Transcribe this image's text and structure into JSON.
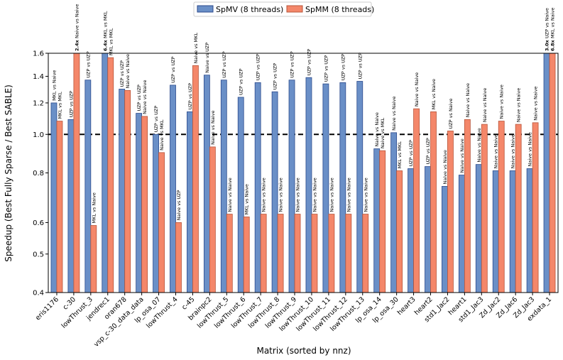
{
  "chart_data": {
    "type": "bar",
    "title": "",
    "xlabel": "Matrix (sorted by nnz)",
    "ylabel": "Speedup (Best Fully Sparse / Best SABLE)",
    "ylim": [
      0.4,
      1.6
    ],
    "yscale": "log",
    "yticks": [
      "0.4",
      "0.5",
      "0.6",
      "0.8",
      "1.0",
      "1.2",
      "1.4",
      "1.6"
    ],
    "reference_line": 1.0,
    "legend_position": "top-center",
    "categories": [
      "eris1176",
      "c-30",
      "lowThrust_3",
      "jendrec1",
      "oran678",
      "vsp_c-30_data_data",
      "lp_osa_07",
      "lowThrust_4",
      "c-45",
      "brainpc2",
      "lowThrust_5",
      "lowThrust_6",
      "lowThrust_7",
      "lowThrust_8",
      "lowThrust_9",
      "lowThrust_10",
      "lowThrust_11",
      "lowThrust_12",
      "lowThrust_13",
      "lp_osa_14",
      "lp_osa_30",
      "heart3",
      "heart2",
      "std1_Jac2",
      "heart1",
      "std1_Jac3",
      "Zd_Jac2",
      "Zd_Jac6",
      "Zd_Jac3",
      "exdata_1"
    ],
    "series": [
      {
        "name": "SpMV (8 threads)",
        "color": "#6a8fc7",
        "edge": "#2b4a8c",
        "values": [
          1.2,
          1.09,
          1.37,
          1.61,
          1.3,
          1.13,
          1.0,
          1.33,
          1.14,
          1.41,
          1.37,
          1.24,
          1.35,
          1.28,
          1.37,
          1.39,
          1.34,
          1.35,
          1.36,
          0.92,
          1.01,
          0.82,
          0.83,
          0.74,
          0.79,
          0.84,
          0.81,
          0.81,
          0.82,
          1.61
        ],
        "labels": [
          "MKL vs Naive",
          "UZP vs UZP",
          "UZP vs UZP",
          "MKL vs MKL",
          "UZP vs UZP",
          "UZP vs UZP",
          "UZP vs UZP",
          "UZP vs UZP",
          "UZP vs UZP",
          "Naive vs UZP",
          "UZP vs UZP",
          "UZP vs UZP",
          "UZP vs UZP",
          "UZP vs UZP",
          "UZP vs UZP",
          "UZP vs UZP",
          "UZP vs UZP",
          "UZP vs UZP",
          "UZP vs UZP",
          "Naive vs Naive",
          "Naive vs Naive",
          "UZP vs UZP",
          "UZP vs UZP",
          "Naive vs Naive",
          "Naive vs Naive",
          "Naive vs Naive",
          "Naive vs Naive",
          "Naive vs Naive",
          "Naive vs Naive",
          "UZP vs Naive"
        ],
        "bold_prefix": [
          "",
          "",
          "",
          "6.4x",
          "",
          "",
          "",
          "",
          "",
          "",
          "",
          "",
          "",
          "",
          "",
          "",
          "",
          "",
          "",
          "",
          "",
          "",
          "",
          "",
          "",
          "",
          "",
          "",
          "",
          "3.0x"
        ]
      },
      {
        "name": "SpMM (8 threads)",
        "color": "#f4876a",
        "edge": "#b8553a",
        "values": [
          1.08,
          1.61,
          0.59,
          1.56,
          1.29,
          1.11,
          0.9,
          0.6,
          1.49,
          0.93,
          0.63,
          0.62,
          0.63,
          0.63,
          0.63,
          0.63,
          0.63,
          0.63,
          0.63,
          0.91,
          0.81,
          1.16,
          1.14,
          1.02,
          1.09,
          1.06,
          1.08,
          1.06,
          1.07,
          1.61
        ],
        "labels": [
          "MKL vs MKL",
          "Naive vs Naive",
          "MKL vs Naive",
          "MKL vs MKL",
          "Naive vs Naive",
          "Naive vs Naive",
          "Naive vs MKL",
          "Naive vs UZP",
          "Naive vs MKL",
          "Naive vs Naive",
          "Naive vs Naive",
          "MKL vs Naive",
          "Naive vs Naive",
          "Naive vs Naive",
          "Naive vs Naive",
          "Naive vs Naive",
          "Naive vs Naive",
          "Naive vs Naive",
          "Naive vs Naive",
          "Naive vs MKL",
          "MKL vs MKL",
          "Naive vs Naive",
          "MKL vs Naive",
          "UZP vs Naive",
          "Naive vs Naive",
          "Naive vs Naive",
          "Naive vs Naive",
          "Naive vs Naive",
          "Naive vs Naive",
          "MKL vs Naive"
        ],
        "bold_prefix": [
          "",
          "2.4x",
          "",
          "",
          "",
          "",
          "",
          "",
          "",
          "",
          "",
          "",
          "",
          "",
          "",
          "",
          "",
          "",
          "",
          "",
          "",
          "",
          "",
          "",
          "",
          "",
          "",
          "",
          "",
          "6.8x"
        ]
      }
    ]
  }
}
